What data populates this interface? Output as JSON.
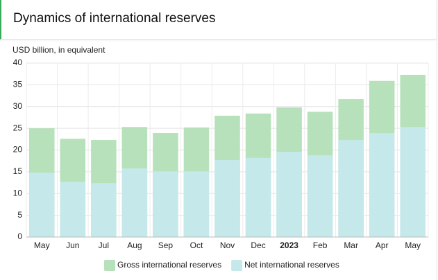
{
  "header": {
    "title": "Dynamics of international reserves"
  },
  "chart_data": {
    "type": "bar",
    "overlap": true,
    "y_label": "USD billion, in equivalent",
    "categories": [
      "May",
      "Jun",
      "Jul",
      "Aug",
      "Sep",
      "Oct",
      "Nov",
      "Dec",
      "2023",
      "Feb",
      "Mar",
      "Apr",
      "May"
    ],
    "bold_categories": [
      8
    ],
    "series": [
      {
        "name": "Gross international reserves",
        "color": "#b6e1ba",
        "values": [
          25.0,
          22.6,
          22.3,
          25.3,
          23.9,
          25.2,
          27.9,
          28.4,
          29.8,
          28.8,
          31.7,
          35.9,
          37.3
        ]
      },
      {
        "name": "Net international reserves",
        "color": "#c5e8ea",
        "values": [
          14.8,
          12.7,
          12.4,
          15.8,
          15.1,
          15.1,
          17.7,
          18.2,
          19.6,
          18.8,
          22.3,
          23.9,
          25.3
        ]
      }
    ],
    "ylim": [
      0,
      40
    ],
    "yticks": [
      0,
      5,
      10,
      15,
      20,
      25,
      30,
      35,
      40
    ],
    "grid": true
  }
}
